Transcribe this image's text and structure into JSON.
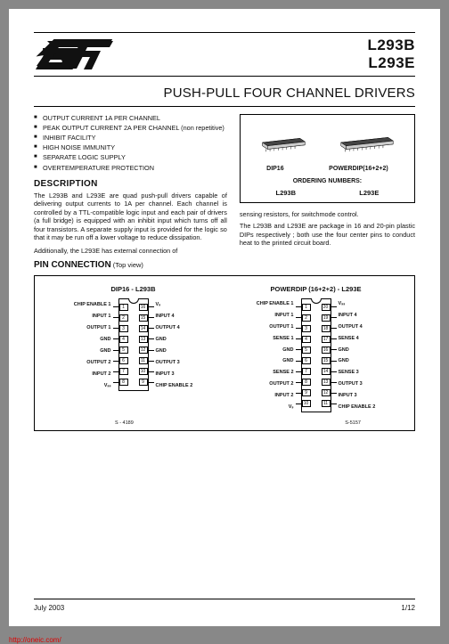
{
  "header": {
    "part1": "L293B",
    "part2": "L293E",
    "title": "PUSH-PULL FOUR CHANNEL DRIVERS"
  },
  "features": [
    "OUTPUT CURRENT 1A PER CHANNEL",
    "PEAK OUTPUT CURRENT 2A PER CHANNEL (non repetitive)",
    "INHIBIT FACILITY",
    "HIGH NOISE IMMUNITY",
    "SEPARATE LOGIC SUPPLY",
    "OVERTEMPERATURE PROTECTION"
  ],
  "desc_heading": "DESCRIPTION",
  "desc_text": "The L293B and L293E are quad push-pull drivers capable of delivering output currents to 1A per channel. Each channel is controlled by a TTL-compatible logic input and each pair of drivers (a full bridge) is equipped with an inhibit input which turns off all four transistors. A separate supply input is provided for the logic so that it may be run off a lower voltage to reduce dissipation.",
  "desc_text2": "Additionally, the L293E has external connection of",
  "right_text1": "sensing resistors, for switchmode control.",
  "right_text2": "The L293B and L293E are package in 16 and 20-pin plastic DIPs respectively ; both use the four center pins to conduct heat to the printed circuit board.",
  "package_box": {
    "pkg1_label": "DIP16",
    "pkg2_label": "POWERDIP(16+2+2)",
    "ordering_heading": "ORDERING NUMBERS:",
    "ord1": "L293B",
    "ord2": "L293E"
  },
  "pinconn_heading": "PIN CONNECTION",
  "pinconn_sub": " (Top view)",
  "chip16": {
    "title": "DIP16 - L293B",
    "partcode": "S - 4189",
    "left_pins": [
      "CHIP ENABLE 1",
      "INPUT 1",
      "OUTPUT 1",
      "GND",
      "GND",
      "OUTPUT 2",
      "INPUT 2",
      "Vₛₛ"
    ],
    "left_nums": [
      "1",
      "2",
      "3",
      "4",
      "5",
      "6",
      "7",
      "8"
    ],
    "right_nums": [
      "16",
      "15",
      "14",
      "13",
      "12",
      "11",
      "10",
      "9"
    ],
    "right_pins": [
      "Vₛ",
      "INPUT 4",
      "OUTPUT 4",
      "GND",
      "GND",
      "OUTPUT 3",
      "INPUT 3",
      "CHIP ENABLE 2"
    ]
  },
  "chip20": {
    "title": "POWERDIP (16+2+2) - L293E",
    "partcode": "S-5157",
    "left_pins": [
      "CHIP ENABLE 1",
      "INPUT 1",
      "OUTPUT 1",
      "SENSE 1",
      "GND",
      "GND",
      "SENSE 2",
      "OUTPUT 2",
      "INPUT 2",
      "Vₛ"
    ],
    "left_nums": [
      "1",
      "2",
      "3",
      "4",
      "5",
      "6",
      "7",
      "8",
      "9",
      "10"
    ],
    "right_nums": [
      "20",
      "19",
      "18",
      "17",
      "16",
      "15",
      "14",
      "13",
      "12",
      "11"
    ],
    "right_pins": [
      "Vₛₛ",
      "INPUT 4",
      "OUTPUT 4",
      "SENSE 4",
      "GND",
      "GND",
      "SENSE 3",
      "OUTPUT 3",
      "INPUT 3",
      "CHIP ENABLE 2"
    ]
  },
  "footer": {
    "date": "July 2003",
    "page": "1/12"
  },
  "url": "http://oneic.com/",
  "colors": {
    "rule": "#000000",
    "text": "#111111",
    "url": "#d00000",
    "page_bg": "#ffffff",
    "outer_bg": "#888888"
  }
}
